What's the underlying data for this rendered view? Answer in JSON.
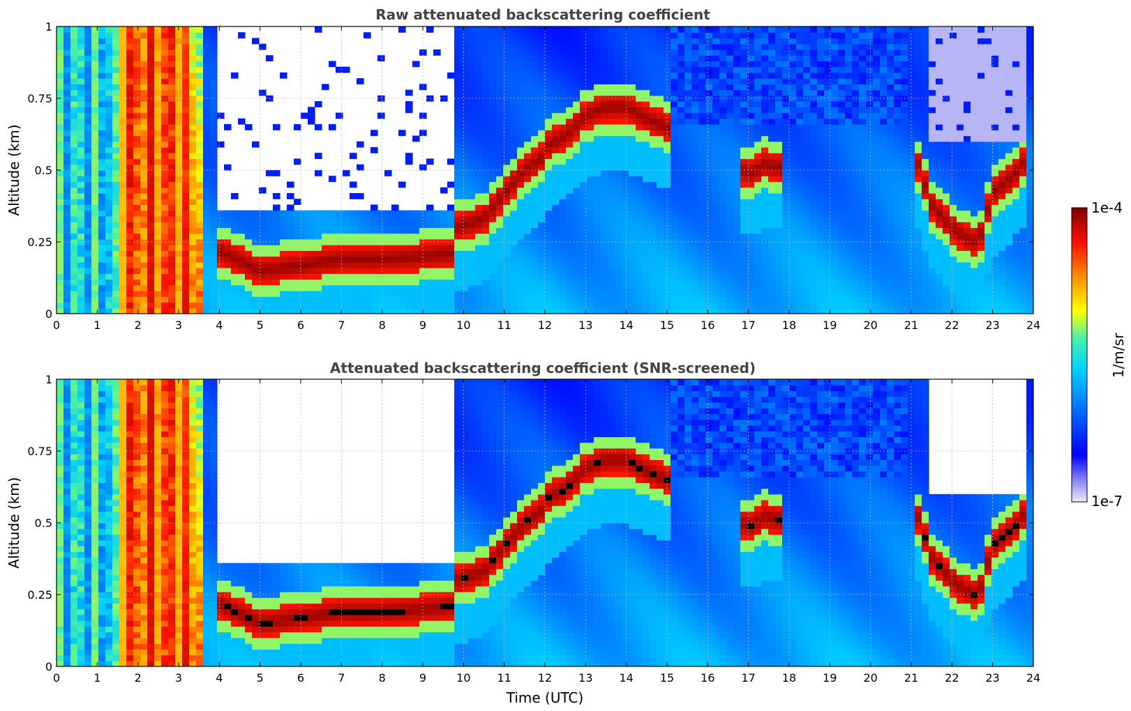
{
  "chart_data": [
    {
      "type": "heatmap",
      "title": "Raw attenuated backscattering coefficient",
      "xlabel": "",
      "ylabel": "Altitude (km)",
      "xlim": [
        0,
        24
      ],
      "ylim": [
        0,
        1
      ],
      "x_ticks": [
        "0",
        "1",
        "2",
        "3",
        "4",
        "5",
        "6",
        "7",
        "8",
        "9",
        "10",
        "11",
        "12",
        "13",
        "14",
        "15",
        "16",
        "17",
        "18",
        "19",
        "20",
        "21",
        "22",
        "23",
        "24"
      ],
      "y_ticks": [
        "0",
        "0.25",
        "0.5",
        "0.75",
        "1"
      ],
      "grid": true,
      "screened": false,
      "layers": [
        {
          "name": "boundary-layer",
          "x": [
            4,
            5,
            6,
            7,
            8,
            9,
            9.7
          ],
          "y": [
            0.22,
            0.15,
            0.17,
            0.19,
            0.19,
            0.2,
            0.21
          ]
        },
        {
          "name": "rising-layer",
          "x": [
            9.8,
            10.5,
            11,
            11.5,
            12
          ],
          "y": [
            0.3,
            0.33,
            0.42,
            0.5,
            0.55
          ]
        },
        {
          "name": "upper-layer",
          "x": [
            12,
            12.5,
            13,
            13.5,
            14,
            14.5,
            15
          ],
          "y": [
            0.58,
            0.62,
            0.69,
            0.72,
            0.72,
            0.68,
            0.65
          ]
        },
        {
          "name": "evening-layer",
          "x": [
            21.1,
            21.5,
            22,
            22.5,
            22.7,
            23,
            23.5,
            23.9
          ],
          "y": [
            0.55,
            0.38,
            0.3,
            0.25,
            0.27,
            0.42,
            0.48,
            0.55
          ]
        },
        {
          "name": "cloud-patch",
          "x": [
            16.8,
            17.1,
            17.4,
            17.8
          ],
          "y": [
            0.5,
            0.49,
            0.52,
            0.51
          ]
        }
      ]
    },
    {
      "type": "heatmap",
      "title": "Attenuated backscattering coefficient (SNR-screened)",
      "xlabel": "Time (UTC)",
      "ylabel": "Altitude (km)",
      "xlim": [
        0,
        24
      ],
      "ylim": [
        0,
        1
      ],
      "x_ticks": [
        "0",
        "1",
        "2",
        "3",
        "4",
        "5",
        "6",
        "7",
        "8",
        "9",
        "10",
        "11",
        "12",
        "13",
        "14",
        "15",
        "16",
        "17",
        "18",
        "19",
        "20",
        "21",
        "22",
        "23",
        "24"
      ],
      "y_ticks": [
        "0",
        "0.25",
        "0.5",
        "0.75",
        "1"
      ],
      "grid": true,
      "screened": true
    }
  ],
  "colorbar": {
    "label": "1/m/sr",
    "max_label": "1e-4",
    "min_label": "1e-7",
    "scale": "log",
    "colors": [
      "#eceaf8",
      "#0000ff",
      "#00c8ff",
      "#ffff00",
      "#ff6000",
      "#800000"
    ]
  }
}
